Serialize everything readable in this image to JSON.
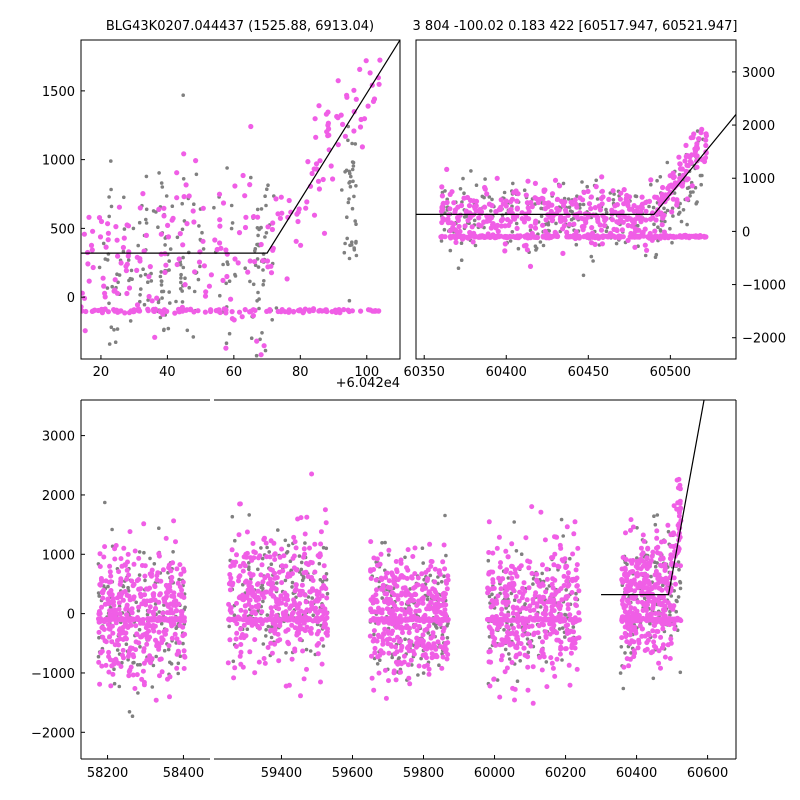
{
  "figure": {
    "title_left": "BLG43K0207.044437 (1525.88, 6913.04)",
    "title_right": "3 804 -100.02 0.183 422 [60517.947, 60521.947]",
    "offset_label": "+6.042e4"
  },
  "colors": {
    "magenta": "#f05ee6",
    "gray": "#808080",
    "line": "#000000"
  },
  "chart_data": [
    {
      "id": "top-left",
      "type": "scatter",
      "title": "BLG43K0207.044437 (1525.88, 6913.04)",
      "x_offset": 60420,
      "xlim": [
        14,
        110
      ],
      "ylim": [
        -450,
        1870
      ],
      "xticks": [
        20,
        40,
        60,
        80,
        100
      ],
      "yticks": [
        0,
        500,
        1000,
        1500
      ],
      "ytick_side": "left",
      "model_line": {
        "x": [
          14,
          70,
          110
        ],
        "y": [
          320,
          320,
          1870
        ]
      },
      "series": [
        {
          "color": "magenta",
          "baseline": -100,
          "approx_points": 160,
          "desc": "dense near x=60-110, rising to ~1800 above x=90"
        },
        {
          "color": "gray",
          "approx_points": 250,
          "desc": "scattered 0-1500 mostly x=20-70"
        }
      ]
    },
    {
      "id": "top-right",
      "type": "scatter",
      "xlim": [
        60345,
        60540
      ],
      "ylim": [
        -2400,
        3600
      ],
      "xticks": [
        60350,
        60400,
        60450,
        60500
      ],
      "yticks": [
        -2000,
        -1000,
        0,
        1000,
        2000,
        3000
      ],
      "ytick_side": "right",
      "model_line": {
        "x": [
          60345,
          60490,
          60540
        ],
        "y": [
          320,
          320,
          2200
        ]
      },
      "series": [
        {
          "color": "magenta",
          "baseline": -100,
          "approx_points": 700
        },
        {
          "color": "gray",
          "approx_points": 300
        }
      ]
    },
    {
      "id": "bottom",
      "type": "scatter",
      "broken_xaxis": true,
      "segments": [
        {
          "xlim": [
            58130,
            58470
          ],
          "xticks": [
            58200,
            58400
          ]
        },
        {
          "xlim": [
            59210,
            60680
          ],
          "xticks": [
            59400,
            59600,
            59800,
            60000,
            60200,
            60400,
            60600
          ]
        }
      ],
      "ylim": [
        -2450,
        3600
      ],
      "yticks": [
        -2000,
        -1000,
        0,
        1000,
        2000,
        3000
      ],
      "ytick_side": "left",
      "model_line": {
        "x": [
          60300,
          60490,
          60590
        ],
        "y": [
          320,
          320,
          3600
        ]
      },
      "seasons": [
        {
          "center": 58290,
          "halfwidth": 115,
          "ymean": 0,
          "spread": 550
        },
        {
          "center": 59390,
          "halfwidth": 140,
          "ymean": 250,
          "spread": 550
        },
        {
          "center": 59760,
          "halfwidth": 110,
          "ymean": 0,
          "spread": 500
        },
        {
          "center": 60110,
          "halfwidth": 130,
          "ymean": 50,
          "spread": 550
        },
        {
          "center": 60440,
          "halfwidth": 85,
          "ymean": 250,
          "spread": 500
        }
      ]
    }
  ]
}
